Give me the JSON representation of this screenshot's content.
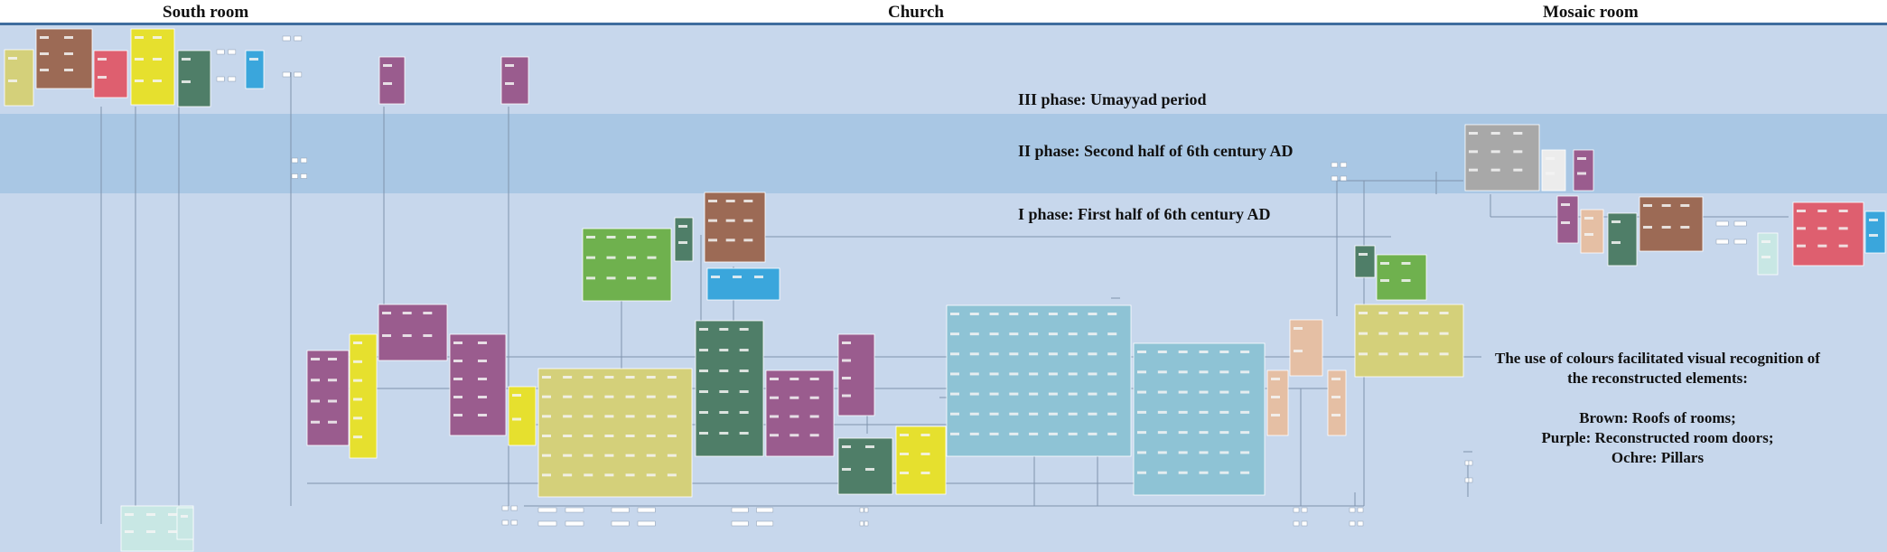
{
  "headers": [
    "South room",
    "Church",
    "Mosaic room"
  ],
  "phases": [
    "III phase: Umayyad period",
    "II phase: Second half of 6th century AD",
    "I phase: First half of 6th century AD"
  ],
  "note": [
    "The use of colours facilitated visual recognition of",
    "the reconstructed elements:",
    "",
    "Brown: Roofs of rooms;",
    "Purple: Reconstructed room doors;",
    "Ochre: Pillars"
  ],
  "colors": {
    "band_light": "#c7d7ec",
    "band_dark": "#a9c7e4",
    "olive": "#d4d07a",
    "brown": "#9c6a55",
    "red": "#de5f6f",
    "yellow": "#e6e02e",
    "green": "#4f7e68",
    "lightgreen": "#6fb14e",
    "cyan": "#3aa6dc",
    "purple": "#9a5c8e",
    "teal": "#8ec3d5",
    "peach": "#e5bfa4",
    "gray": "#a8a8a8",
    "white": "#ececec",
    "mint": "#c8e7e4"
  }
}
